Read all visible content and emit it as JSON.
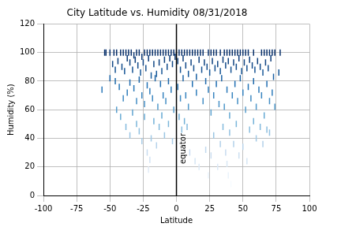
{
  "chart_data": {
    "type": "scatter",
    "title": "City Latitude vs. Humidity 08/31/2018",
    "x_label": "Latitude",
    "y_label": "Humidity (%)",
    "x": [
      -54,
      -53,
      -50,
      -47,
      -45,
      -42,
      -40,
      -38,
      -36,
      -34,
      -32,
      -30,
      -28,
      -26,
      -24,
      -22,
      -20,
      -18,
      -16,
      -14,
      -12,
      -10,
      -8,
      -6,
      -4,
      -2,
      0,
      2,
      4,
      6,
      8,
      10,
      12,
      14,
      16,
      18,
      20,
      24,
      26,
      28,
      30,
      33,
      36,
      38,
      40,
      42,
      44,
      46,
      48,
      50,
      52,
      54,
      58,
      64,
      66,
      68,
      70,
      72,
      74,
      78,
      -56,
      -48,
      -46,
      -44,
      -41,
      -39,
      -37,
      -35,
      -33,
      -31,
      -29,
      -27,
      -25,
      -23,
      -21,
      -19,
      -17,
      -15,
      -13,
      -11,
      -9,
      -7,
      -5,
      -3,
      -1,
      1,
      3,
      5,
      7,
      9,
      11,
      13,
      15,
      17,
      19,
      21,
      23,
      25,
      27,
      29,
      31,
      33,
      35,
      37,
      39,
      41,
      43,
      45,
      47,
      49,
      51,
      53,
      55,
      57,
      59,
      61,
      63,
      65,
      67,
      69,
      71,
      73,
      77,
      -50,
      -46,
      -43,
      -40,
      -37,
      -35,
      -32,
      -30,
      -28,
      -26,
      -24,
      -22,
      -20,
      -18,
      -16,
      -14,
      -12,
      -10,
      -8,
      -6,
      -4,
      -2,
      1,
      3,
      5,
      7,
      9,
      12,
      15,
      20,
      22,
      24,
      26,
      28,
      30,
      32,
      34,
      36,
      38,
      40,
      42,
      44,
      46,
      48,
      50,
      52,
      54,
      56,
      58,
      60,
      62,
      64,
      66,
      68,
      70,
      72,
      74,
      -45,
      -42,
      -38,
      -35,
      -33,
      -30,
      -28,
      -26,
      -24,
      -22,
      -21,
      -20,
      -19,
      -17,
      -15,
      -13,
      -11,
      -9,
      -6,
      -3,
      2,
      4,
      6,
      8,
      10,
      14,
      17,
      22,
      24,
      26,
      28,
      31,
      33,
      35,
      37,
      38,
      39,
      40,
      41,
      43,
      45,
      47,
      50,
      53,
      55,
      58,
      60,
      63,
      65,
      68,
      70
    ],
    "values": [
      100,
      100,
      100,
      100,
      100,
      100,
      100,
      100,
      100,
      100,
      98,
      100,
      100,
      97,
      100,
      100,
      100,
      100,
      100,
      100,
      100,
      100,
      100,
      100,
      100,
      100,
      100,
      100,
      100,
      100,
      100,
      100,
      100,
      100,
      100,
      100,
      100,
      100,
      100,
      100,
      100,
      100,
      100,
      100,
      100,
      100,
      100,
      100,
      100,
      100,
      100,
      100,
      100,
      100,
      100,
      100,
      100,
      100,
      100,
      100,
      74,
      92,
      88,
      94,
      90,
      87,
      96,
      93,
      88,
      95,
      91,
      86,
      93,
      89,
      96,
      84,
      92,
      85,
      93,
      87,
      95,
      90,
      96,
      92,
      97,
      94,
      88,
      96,
      91,
      85,
      93,
      89,
      83,
      95,
      88,
      93,
      90,
      86,
      94,
      89,
      92,
      87,
      95,
      91,
      94,
      88,
      93,
      90,
      96,
      87,
      93,
      89,
      95,
      91,
      88,
      94,
      90,
      86,
      93,
      89,
      96,
      83,
      86,
      82,
      80,
      76,
      68,
      72,
      79,
      75,
      66,
      81,
      70,
      64,
      77,
      73,
      68,
      82,
      62,
      78,
      70,
      66,
      80,
      74,
      60,
      76,
      68,
      82,
      70,
      62,
      78,
      72,
      66,
      80,
      74,
      58,
      70,
      78,
      64,
      82,
      62,
      74,
      56,
      70,
      78,
      66,
      82,
      72,
      60,
      76,
      68,
      80,
      62,
      74,
      70,
      56,
      78,
      66,
      72,
      62,
      60,
      55,
      48,
      42,
      58,
      50,
      45,
      38,
      55,
      30,
      18,
      25,
      40,
      52,
      35,
      48,
      56,
      42,
      50,
      38,
      55,
      46,
      52,
      48,
      30,
      24,
      20,
      32,
      14,
      28,
      42,
      20,
      36,
      48,
      30,
      22,
      14,
      44,
      8,
      36,
      50,
      28,
      34,
      24,
      46,
      52,
      40,
      48,
      36,
      46,
      44
    ],
    "xlim": [
      -100,
      100
    ],
    "xticks": [
      -100,
      -75,
      -50,
      -25,
      0,
      25,
      50,
      75,
      100
    ],
    "ylim": [
      0,
      120
    ],
    "yticks": [
      0,
      20,
      40,
      60,
      80,
      100,
      120
    ],
    "grid": true,
    "marker": "|",
    "annotations": [
      {
        "text": "equator",
        "x": 0,
        "y": 22
      }
    ]
  }
}
